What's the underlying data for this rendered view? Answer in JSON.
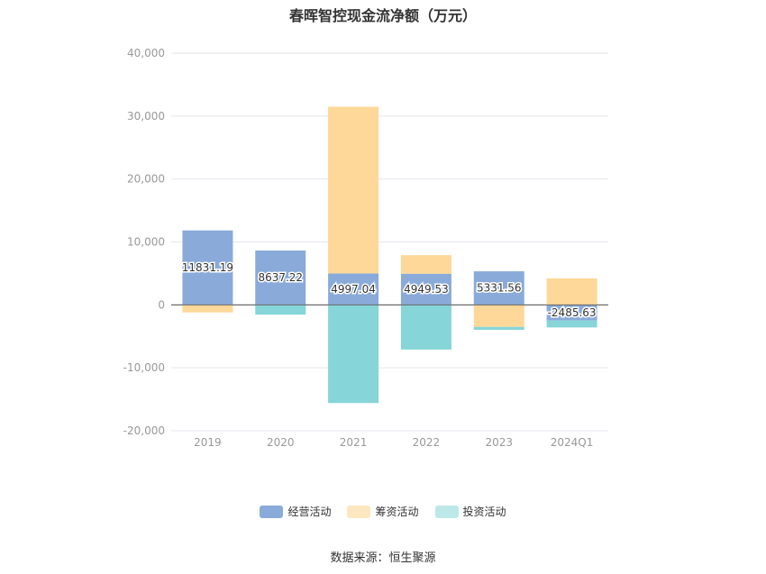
{
  "chart_data": {
    "type": "bar",
    "stacked": true,
    "title": "春晖智控现金流净额（万元）",
    "categories": [
      "2019",
      "2020",
      "2021",
      "2022",
      "2023",
      "2024Q1"
    ],
    "series": [
      {
        "name": "经营活动",
        "color": "#8aabd9",
        "legend_color": "#8aabd9",
        "values": [
          11831.19,
          8637.22,
          4997.04,
          4949.53,
          5331.56,
          -2485.63
        ],
        "labels": [
          "11831.19",
          "8637.22",
          "4997.04",
          "4949.53",
          "5331.56",
          "-2485.63"
        ]
      },
      {
        "name": "筹资活动",
        "color": "#fdd898",
        "legend_color": "#fde7c0",
        "values": [
          -1200,
          0,
          26500,
          2950,
          -3500,
          4200
        ]
      },
      {
        "name": "投资活动",
        "color": "#86d5d8",
        "legend_color": "#bde8ea",
        "values": [
          0,
          -1550,
          -15600,
          -7100,
          -470,
          -1100
        ]
      }
    ],
    "ylim": [
      -20000,
      40000
    ],
    "yticks": [
      40000,
      30000,
      20000,
      10000,
      0,
      -10000,
      -20000
    ],
    "ytick_labels": [
      "40,000",
      "30,000",
      "20,000",
      "10,000",
      "0",
      "-10,000",
      "-20,000"
    ],
    "grid": true,
    "legend": "bottom",
    "source": "数据来源：恒生聚源"
  }
}
